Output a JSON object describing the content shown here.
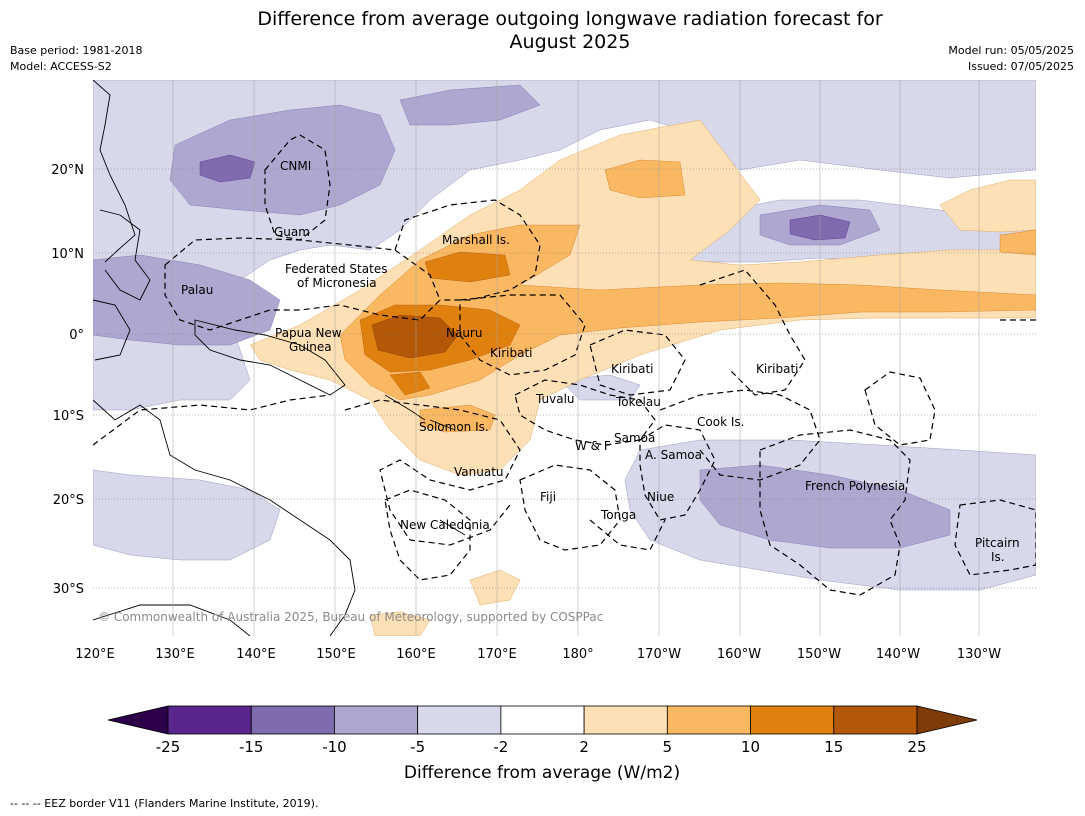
{
  "title_line1": "Difference from average outgoing longwave radiation forecast for",
  "title_line2": "August 2025",
  "base_period": "Base period: 1981-2018",
  "model": "Model: ACCESS-S2",
  "model_run": "Model run: 05/05/2025",
  "issued": "Issued: 07/05/2025",
  "copyright": "© Commonwealth of Australia 2025, Bureau of Meteorology, supported by COSPPac",
  "lon_ticks": [
    "120°E",
    "130°E",
    "140°E",
    "150°E",
    "160°E",
    "170°E",
    "180°",
    "170°W",
    "160°W",
    "150°W",
    "140°W",
    "130°W"
  ],
  "lat_ticks": [
    "20°N",
    "10°N",
    "0°",
    "10°S",
    "20°S",
    "30°S"
  ],
  "region_labels": [
    {
      "text": "CNMI"
    },
    {
      "text": "Guam"
    },
    {
      "text": "Marshall Is."
    },
    {
      "text": "Federated States"
    },
    {
      "text": "of Micronesia"
    },
    {
      "text": "Palau"
    },
    {
      "text": "Papua New"
    },
    {
      "text": "Guinea"
    },
    {
      "text": "Nauru"
    },
    {
      "text": "Kiribati"
    },
    {
      "text": "Kiribati"
    },
    {
      "text": "Kiribati"
    },
    {
      "text": "Tuvalu"
    },
    {
      "text": "Tokelau"
    },
    {
      "text": "Cook Is."
    },
    {
      "text": "Solomon Is."
    },
    {
      "text": "W & F"
    },
    {
      "text": "Samoa"
    },
    {
      "text": "A. Samoa"
    },
    {
      "text": "Vanuatu"
    },
    {
      "text": "Fiji"
    },
    {
      "text": "Niue"
    },
    {
      "text": "French Polynesia"
    },
    {
      "text": "Tonga"
    },
    {
      "text": "New Caledonia"
    },
    {
      "text": "Pitcairn"
    },
    {
      "text": "Is."
    }
  ],
  "colorbar": {
    "ticks": [
      "-25",
      "-15",
      "-10",
      "-5",
      "-2",
      "2",
      "5",
      "10",
      "15",
      "25"
    ],
    "colors": [
      "#58268d",
      "#7f6cae",
      "#aea8d1",
      "#d7d8ea",
      "#ffffff",
      "#fde0b5",
      "#fbb862",
      "#e0800f",
      "#b45707"
    ],
    "under_color": "#2d004b",
    "over_color": "#7f3b08",
    "label": "Difference from average (W/m2)"
  },
  "footer": "--  --  -- EEZ border V11 (Flanders Marine Institute, 2019)."
}
